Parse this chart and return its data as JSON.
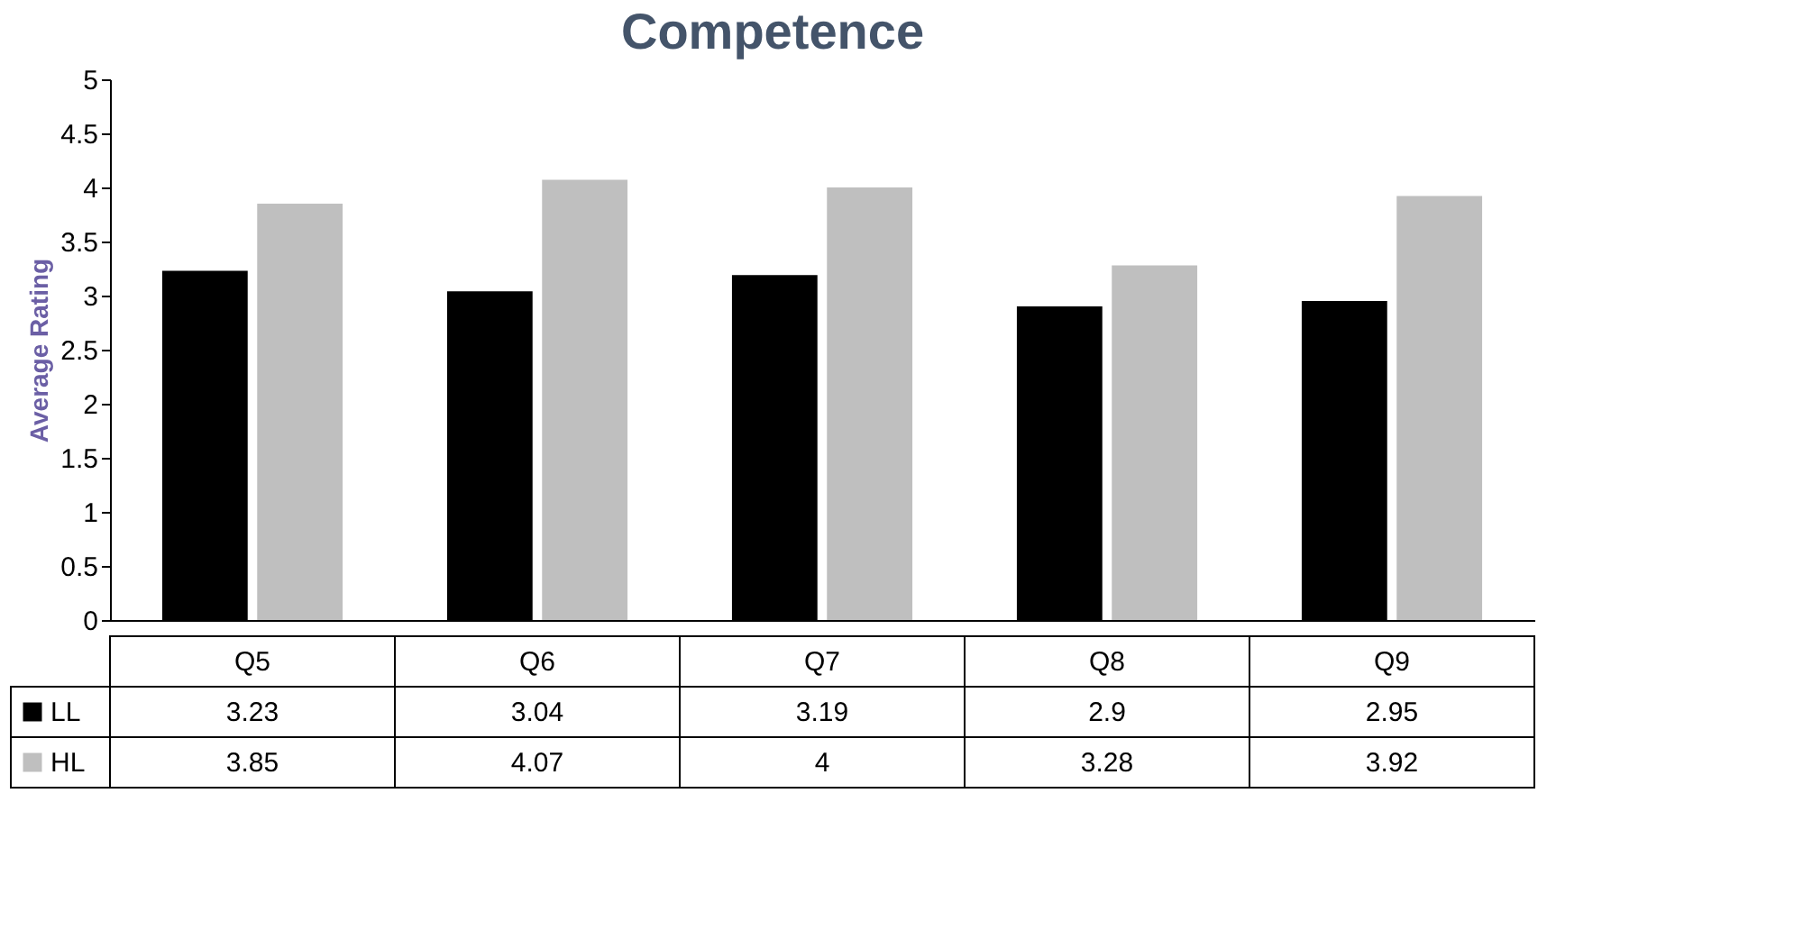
{
  "chart_data": {
    "type": "bar",
    "title": "Competence",
    "ylabel": "Average Rating",
    "categories": [
      "Q5",
      "Q6",
      "Q7",
      "Q8",
      "Q9"
    ],
    "series": [
      {
        "name": "LL",
        "color": "#000000",
        "values": [
          3.23,
          3.04,
          3.19,
          2.9,
          2.95
        ]
      },
      {
        "name": "HL",
        "color": "#bfbfbf",
        "values": [
          3.85,
          4.07,
          4,
          3.28,
          3.92
        ]
      }
    ],
    "ylim": [
      0,
      5
    ],
    "yticks": [
      0,
      0.5,
      1,
      1.5,
      2,
      2.5,
      3,
      3.5,
      4,
      4.5,
      5
    ],
    "grid": false,
    "legend": "bottom",
    "data_labels": true
  }
}
